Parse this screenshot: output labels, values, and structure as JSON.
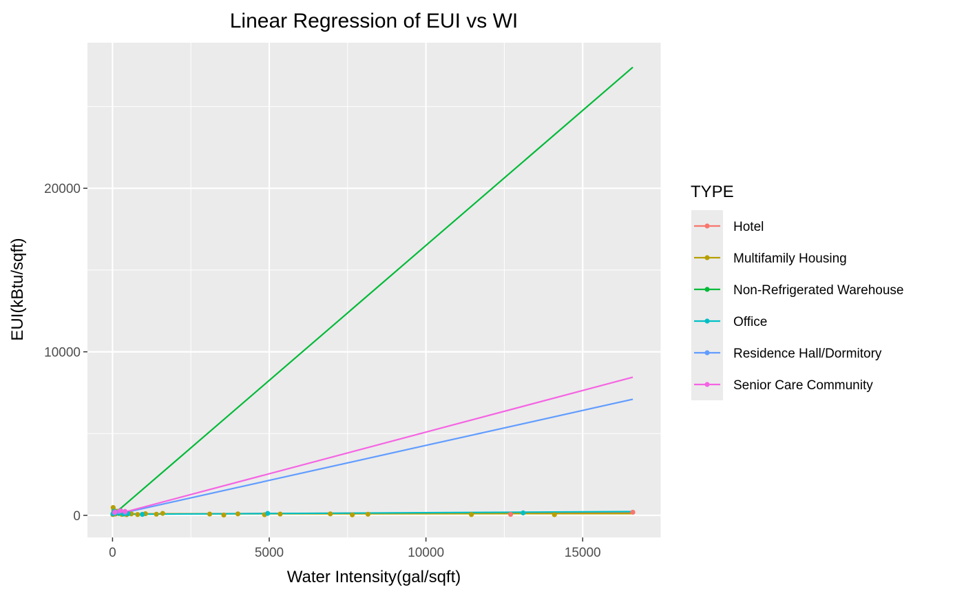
{
  "chart_data": {
    "type": "scatter",
    "title": "Linear Regression of EUI vs WI",
    "xlabel": "Water Intensity(gal/sqft)",
    "ylabel": "EUI(kBtu/sqft)",
    "xlim": [
      -800,
      17500
    ],
    "ylim": [
      -1350,
      28900
    ],
    "x_ticks": [
      0,
      5000,
      10000,
      15000
    ],
    "x_tick_labels": [
      "0",
      "5000",
      "10000",
      "15000"
    ],
    "y_ticks": [
      0,
      10000,
      20000
    ],
    "y_tick_labels": [
      "0",
      "10000",
      "20000"
    ],
    "grid": true,
    "legend": {
      "title": "TYPE",
      "position": "right",
      "entries": [
        "Hotel",
        "Multifamily Housing",
        "Non-Refrigerated Warehouse",
        "Office",
        "Residence Hall/Dormitory",
        "Senior Care Community"
      ]
    },
    "series": [
      {
        "name": "Hotel",
        "color": "#F8766D",
        "points": [
          [
            20,
            110
          ],
          [
            150,
            180
          ],
          [
            400,
            90
          ],
          [
            12700,
            60
          ],
          [
            16600,
            190
          ]
        ],
        "fit": {
          "x": [
            0,
            16600
          ],
          "y": [
            80,
            190
          ]
        }
      },
      {
        "name": "Multifamily Housing",
        "color": "#B79F00",
        "points": [
          [
            10,
            50
          ],
          [
            20,
            480
          ],
          [
            40,
            300
          ],
          [
            60,
            150
          ],
          [
            90,
            80
          ],
          [
            130,
            250
          ],
          [
            200,
            110
          ],
          [
            300,
            60
          ],
          [
            450,
            40
          ],
          [
            600,
            90
          ],
          [
            800,
            50
          ],
          [
            1050,
            100
          ],
          [
            1400,
            70
          ],
          [
            1600,
            120
          ],
          [
            3100,
            80
          ],
          [
            3550,
            20
          ],
          [
            4000,
            90
          ],
          [
            4850,
            40
          ],
          [
            5350,
            80
          ],
          [
            6950,
            90
          ],
          [
            7650,
            30
          ],
          [
            8150,
            70
          ],
          [
            11450,
            50
          ],
          [
            14100,
            40
          ]
        ],
        "fit": {
          "x": [
            0,
            16600
          ],
          "y": [
            90,
            110
          ]
        }
      },
      {
        "name": "Non-Refrigerated Warehouse",
        "color": "#00BA38",
        "points": [
          [
            30,
            120
          ],
          [
            80,
            200
          ],
          [
            160,
            150
          ],
          [
            250,
            300
          ]
        ],
        "fit": {
          "x": [
            0,
            16600
          ],
          "y": [
            0,
            27400
          ]
        }
      },
      {
        "name": "Office",
        "color": "#00BFC4",
        "points": [
          [
            15,
            90
          ],
          [
            50,
            250
          ],
          [
            100,
            180
          ],
          [
            200,
            120
          ],
          [
            350,
            80
          ],
          [
            500,
            100
          ],
          [
            950,
            60
          ],
          [
            4950,
            120
          ],
          [
            13100,
            150
          ]
        ],
        "fit": {
          "x": [
            0,
            16600
          ],
          "y": [
            60,
            230
          ]
        }
      },
      {
        "name": "Residence Hall/Dormitory",
        "color": "#619CFF",
        "points": [
          [
            60,
            150
          ],
          [
            200,
            220
          ],
          [
            400,
            180
          ]
        ],
        "fit": {
          "x": [
            0,
            16600
          ],
          "y": [
            0,
            7100
          ]
        }
      },
      {
        "name": "Senior Care Community",
        "color": "#F564E3",
        "points": [
          [
            80,
            200
          ],
          [
            250,
            280
          ],
          [
            400,
            240
          ]
        ],
        "fit": {
          "x": [
            0,
            16600
          ],
          "y": [
            0,
            8450
          ]
        }
      }
    ]
  }
}
